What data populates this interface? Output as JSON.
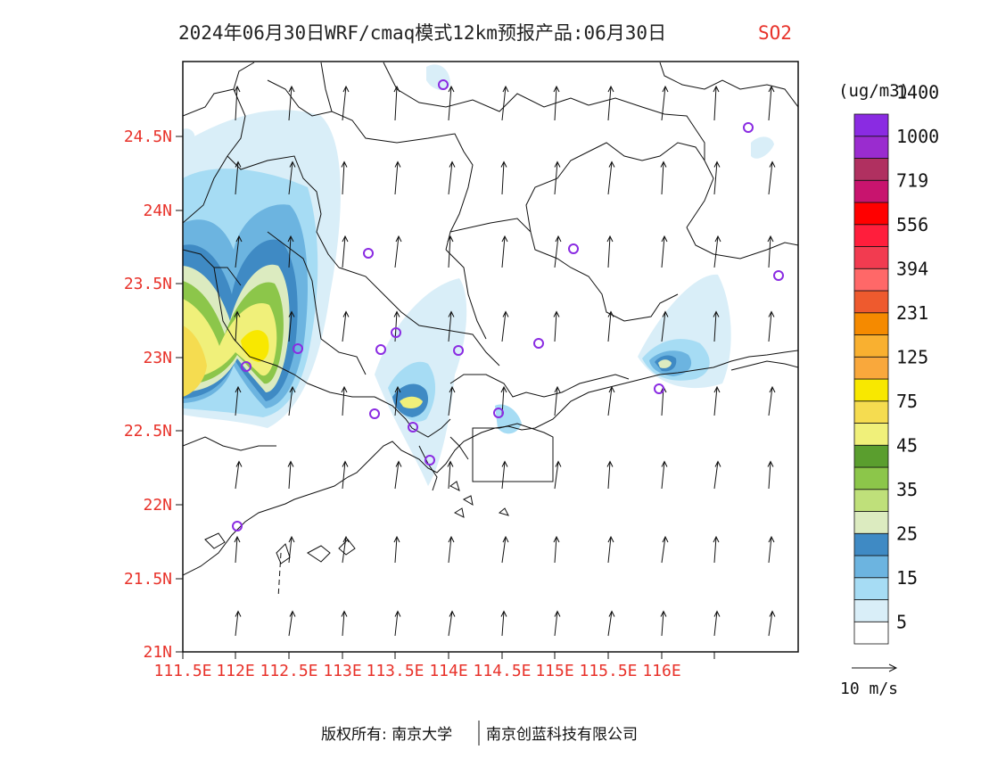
{
  "title": {
    "main": "2024年06月30日WRF/cmaq模式12km预报产品:06月30日",
    "species": "SO2"
  },
  "axes": {
    "lat_ticks": [
      "24.5N",
      "24N",
      "23.5N",
      "23N",
      "22.5N",
      "22N",
      "21.5N",
      "21N"
    ],
    "lon_ticks": [
      "111.5E",
      "112E",
      "112.5E",
      "113E",
      "113.5E",
      "114E",
      "114.5E",
      "115E",
      "115.5E",
      "116E"
    ]
  },
  "colorbar": {
    "unit": "(ug/m3)",
    "labels": [
      "5",
      "15",
      "25",
      "35",
      "45",
      "75",
      "125",
      "231",
      "394",
      "556",
      "719",
      "1000",
      "1400"
    ],
    "colors": [
      "#ffffff",
      "#d9eef8",
      "#a6dcf4",
      "#6cb4e0",
      "#3f8ac4",
      "#dcebc0",
      "#bfe07a",
      "#8cc64a",
      "#5a9e2e",
      "#f0f07a",
      "#f5dc50",
      "#f8e800",
      "#f9a83c",
      "#f9b030",
      "#f58a00",
      "#ee5a2e",
      "#ff6868",
      "#f23b50",
      "#ff1e3c",
      "#ff0000",
      "#c8146e",
      "#b03060",
      "#9a2ccf",
      "#8a2be2"
    ]
  },
  "wind_reference": {
    "label": "10 m/s"
  },
  "footer": {
    "copyright_left": "版权所有: 南京大学",
    "copyright_right": "南京创蓝科技有限公司"
  }
}
